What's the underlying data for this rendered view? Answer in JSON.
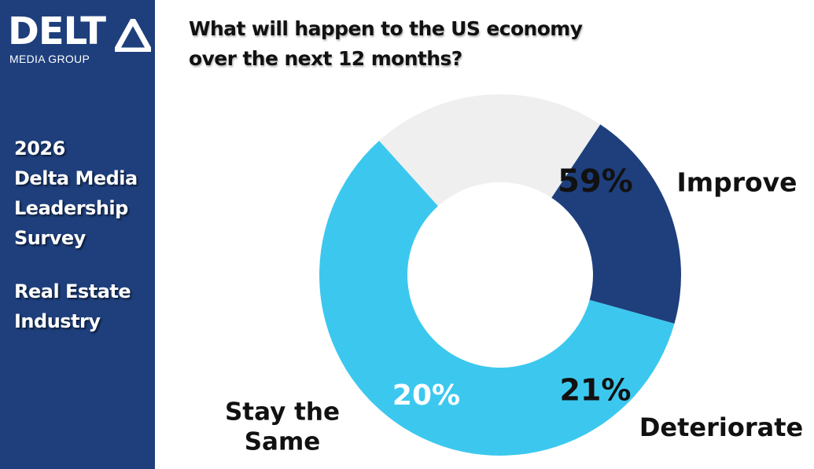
{
  "logo": {
    "word": "DELT",
    "subtitle": "MEDIA GROUP"
  },
  "sidebar": {
    "survey_lines": [
      "2026",
      "Delta Media",
      "Leadership",
      "Survey"
    ],
    "industry_lines": [
      "Real Estate",
      "Industry"
    ]
  },
  "colors": {
    "sidebar": "#1e3f7c",
    "improve": "#3cc8ee",
    "deteriorate": "#efefef",
    "stay": "#1e3f7c"
  },
  "chart_data": {
    "type": "pie",
    "title": "What will happen to the US economy over the next 12 months?",
    "title_lines": [
      "What will happen to the US economy",
      "over the next 12 months?"
    ],
    "donut": true,
    "slices": [
      {
        "label": "Improve",
        "value": 59,
        "value_label": "59%",
        "color": "#3cc8ee"
      },
      {
        "label": "Deteriorate",
        "value": 21,
        "value_label": "21%",
        "color": "#efefef"
      },
      {
        "label": "Stay the Same",
        "value": 20,
        "value_label": "20%",
        "color": "#1e3f7c",
        "label_lines": [
          "Stay the",
          "Same"
        ]
      }
    ]
  }
}
